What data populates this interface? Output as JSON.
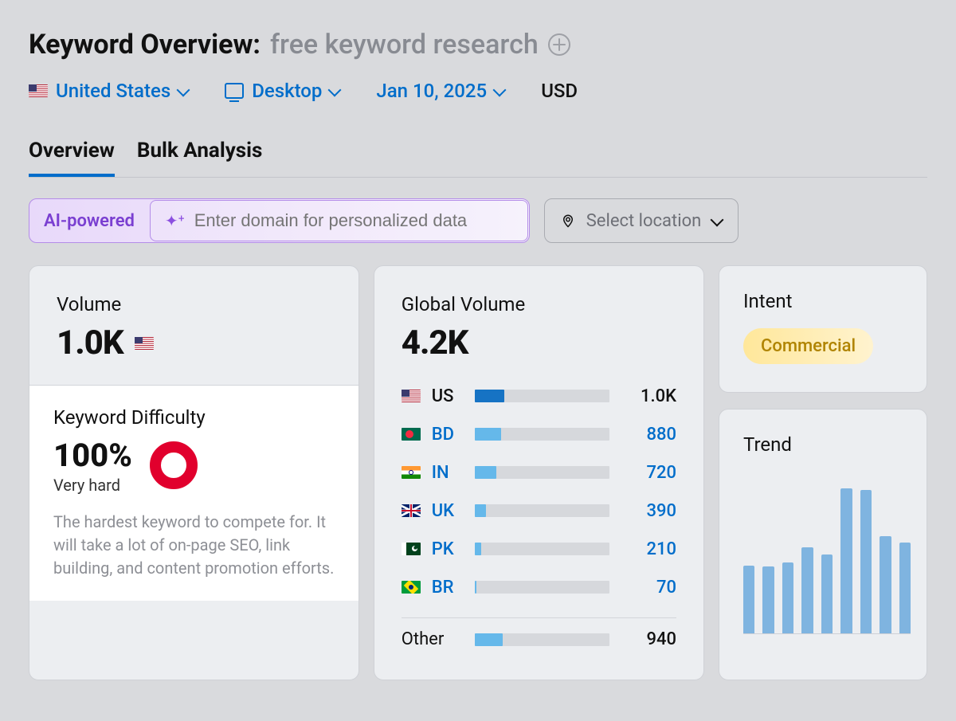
{
  "header": {
    "title_prefix": "Keyword Overview:",
    "keyword": "free keyword research"
  },
  "filters": {
    "country": "United States",
    "device": "Desktop",
    "date": "Jan 10, 2025",
    "currency": "USD"
  },
  "tabs": {
    "overview": "Overview",
    "bulk": "Bulk Analysis",
    "active": "overview"
  },
  "toolbar": {
    "ai_label": "AI-powered",
    "domain_placeholder": "Enter domain for personalized data",
    "location_placeholder": "Select location"
  },
  "volume": {
    "title": "Volume",
    "value": "1.0K"
  },
  "keyword_difficulty": {
    "title": "Keyword Difficulty",
    "percent": "100%",
    "label": "Very hard",
    "ring_color": "#e1002d",
    "description": "The hardest keyword to compete for. It will take a lot of on-page SEO, link building, and content promotion efforts."
  },
  "global_volume": {
    "title": "Global Volume",
    "value": "4.2K",
    "max": 1000,
    "bar_bg": "#d6d8dc",
    "rows": [
      {
        "cc": "US",
        "flag": "us",
        "val": 1000,
        "val_text": "1.0K",
        "color": "#1673c4",
        "link": false
      },
      {
        "cc": "BD",
        "flag": "bd",
        "val": 880,
        "val_text": "880",
        "color": "#65b8ea",
        "link": true
      },
      {
        "cc": "IN",
        "flag": "in",
        "val": 720,
        "val_text": "720",
        "color": "#65b8ea",
        "link": true
      },
      {
        "cc": "UK",
        "flag": "uk",
        "val": 390,
        "val_text": "390",
        "color": "#65b8ea",
        "link": true
      },
      {
        "cc": "PK",
        "flag": "pk",
        "val": 210,
        "val_text": "210",
        "color": "#65b8ea",
        "link": true
      },
      {
        "cc": "BR",
        "flag": "br",
        "val": 70,
        "val_text": "70",
        "color": "#65b8ea",
        "link": true
      }
    ],
    "other": {
      "label": "Other",
      "val": 940,
      "val_text": "940",
      "color": "#65b8ea"
    }
  },
  "intent": {
    "title": "Intent",
    "value": "Commercial",
    "pill_bg_from": "#ffe79a",
    "pill_bg_to": "#fff3cf",
    "pill_text": "#b08400"
  },
  "trend": {
    "title": "Trend",
    "bar_color": "#7fb4e0",
    "max": 100,
    "values": [
      45,
      44,
      47,
      57,
      52,
      96,
      95,
      64,
      60
    ]
  },
  "colors": {
    "link": "#006dca",
    "page_bg": "#d9dadd",
    "card_bg": "#eceef1",
    "card_border": "#cfd1d6"
  }
}
